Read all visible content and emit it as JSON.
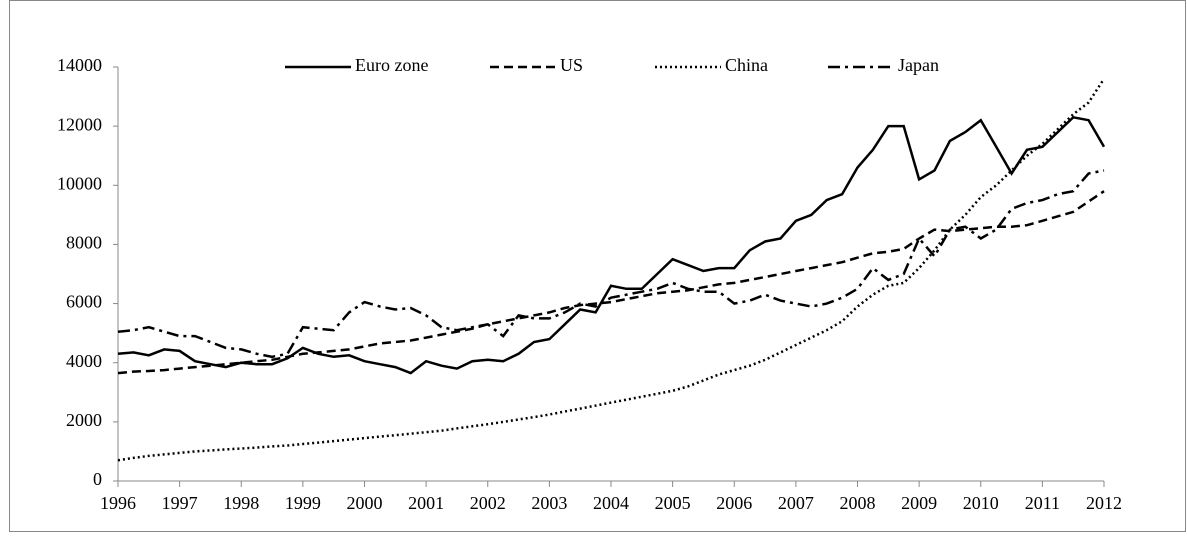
{
  "chart_data": {
    "type": "line",
    "x": [
      1996,
      1996.25,
      1996.5,
      1996.75,
      1997,
      1997.25,
      1997.5,
      1997.75,
      1998,
      1998.25,
      1998.5,
      1998.75,
      1999,
      1999.25,
      1999.5,
      1999.75,
      2000,
      2000.25,
      2000.5,
      2000.75,
      2001,
      2001.25,
      2001.5,
      2001.75,
      2002,
      2002.25,
      2002.5,
      2002.75,
      2003,
      2003.25,
      2003.5,
      2003.75,
      2004,
      2004.25,
      2004.5,
      2004.75,
      2005,
      2005.25,
      2005.5,
      2005.75,
      2006,
      2006.25,
      2006.5,
      2006.75,
      2007,
      2007.25,
      2007.5,
      2007.75,
      2008,
      2008.25,
      2008.5,
      2008.75,
      2009,
      2009.25,
      2009.5,
      2009.75,
      2010,
      2010.25,
      2010.5,
      2010.75,
      2011,
      2011.25,
      2011.5,
      2011.75,
      2012
    ],
    "series": [
      {
        "name": "Euro zone",
        "color": "#000000",
        "style": "solid",
        "values": [
          4300,
          4350,
          4250,
          4450,
          4400,
          4050,
          3950,
          3850,
          4000,
          3950,
          3950,
          4150,
          4500,
          4300,
          4200,
          4250,
          4050,
          3950,
          3850,
          3650,
          4050,
          3900,
          3800,
          4050,
          4100,
          4050,
          4300,
          4700,
          4800,
          5300,
          5800,
          5700,
          6600,
          6500,
          6500,
          7000,
          7500,
          7300,
          7100,
          7200,
          7200,
          7800,
          8100,
          8200,
          8800,
          9000,
          9500,
          9700,
          10600,
          11200,
          12000,
          12000,
          10200,
          10500,
          11500,
          11800,
          12200,
          11300,
          10400,
          11200,
          11300,
          11800,
          12300,
          12200,
          11300
        ]
      },
      {
        "name": "US",
        "color": "#000000",
        "style": "dashed",
        "values": [
          3650,
          3700,
          3720,
          3750,
          3800,
          3850,
          3900,
          3950,
          4000,
          4050,
          4100,
          4200,
          4300,
          4350,
          4400,
          4450,
          4550,
          4650,
          4700,
          4750,
          4850,
          4950,
          5050,
          5150,
          5300,
          5400,
          5500,
          5600,
          5700,
          5850,
          5950,
          6000,
          6050,
          6150,
          6250,
          6350,
          6400,
          6450,
          6550,
          6650,
          6700,
          6800,
          6900,
          7000,
          7100,
          7200,
          7300,
          7400,
          7550,
          7700,
          7750,
          7850,
          8200,
          8500,
          8450,
          8500,
          8550,
          8600,
          8600,
          8650,
          8800,
          8950,
          9100,
          9450,
          9800
        ]
      },
      {
        "name": "China",
        "color": "#000000",
        "style": "dotted",
        "values": [
          700,
          780,
          850,
          900,
          950,
          1000,
          1030,
          1070,
          1100,
          1130,
          1170,
          1200,
          1250,
          1300,
          1350,
          1400,
          1450,
          1500,
          1550,
          1600,
          1650,
          1700,
          1780,
          1850,
          1920,
          2000,
          2080,
          2160,
          2250,
          2350,
          2450,
          2550,
          2650,
          2750,
          2850,
          2950,
          3050,
          3200,
          3400,
          3600,
          3750,
          3900,
          4100,
          4350,
          4600,
          4850,
          5100,
          5400,
          5900,
          6300,
          6600,
          6700,
          7200,
          7800,
          8500,
          9000,
          9600,
          10000,
          10500,
          11000,
          11400,
          11900,
          12400,
          12800,
          13600
        ]
      },
      {
        "name": "Japan",
        "color": "#000000",
        "style": "dashdot",
        "values": [
          5050,
          5100,
          5200,
          5050,
          4900,
          4900,
          4700,
          4500,
          4450,
          4300,
          4200,
          4300,
          5200,
          5150,
          5100,
          5700,
          6050,
          5900,
          5800,
          5850,
          5600,
          5200,
          5100,
          5200,
          5300,
          4900,
          5600,
          5500,
          5500,
          5700,
          6000,
          5900,
          6200,
          6300,
          6400,
          6500,
          6700,
          6500,
          6400,
          6400,
          6000,
          6100,
          6300,
          6100,
          6000,
          5900,
          6000,
          6200,
          6500,
          7200,
          6800,
          7000,
          8200,
          7600,
          8500,
          8600,
          8200,
          8500,
          9200,
          9400,
          9500,
          9700,
          9800,
          10400,
          10500
        ]
      }
    ],
    "xlim": [
      1996,
      2012
    ],
    "xticks": [
      1996,
      1997,
      1998,
      1999,
      2000,
      2001,
      2002,
      2003,
      2004,
      2005,
      2006,
      2007,
      2008,
      2009,
      2010,
      2011,
      2012
    ],
    "ylim": [
      0,
      14000
    ],
    "yticks": [
      0,
      2000,
      4000,
      6000,
      8000,
      10000,
      12000,
      14000
    ],
    "grid": false,
    "legend": "top"
  }
}
